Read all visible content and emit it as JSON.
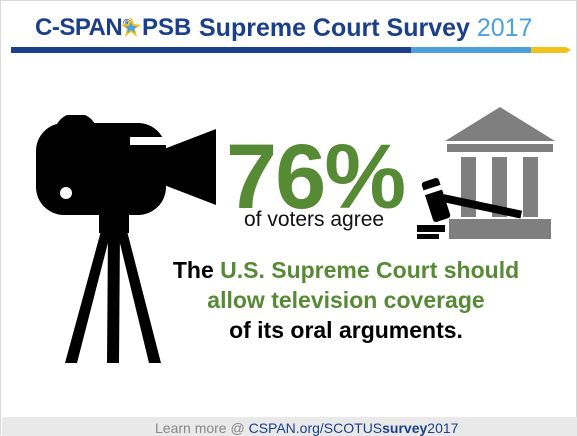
{
  "header": {
    "brand_cspan": "C-SPAN",
    "brand_cspan_mark": "®",
    "brand_psb": "PSB",
    "title_main": "Supreme Court Survey",
    "title_year": "2017"
  },
  "stat": {
    "value": "76%",
    "caption": "of voters agree"
  },
  "statement": {
    "part1": "The ",
    "part2": "U.S. Supreme Court should",
    "part3": "allow television coverage",
    "part4": "of its oral arguments."
  },
  "footer": {
    "prefix": "Learn more @ ",
    "link_main": "CSPAN.org/SCOTUS",
    "link_bold": "survey",
    "link_suffix": "2017"
  },
  "colors": {
    "brand_blue": "#1b3f8b",
    "accent_blue": "#4aa1de",
    "green": "#568a34",
    "icon_gray": "#7f7f7f",
    "icon_black": "#000000",
    "stripe_yellow": "#f2c21a"
  },
  "icons": [
    "psb-star-icon",
    "video-camera-icon",
    "tripod-icon",
    "courthouse-icon",
    "gavel-icon"
  ]
}
